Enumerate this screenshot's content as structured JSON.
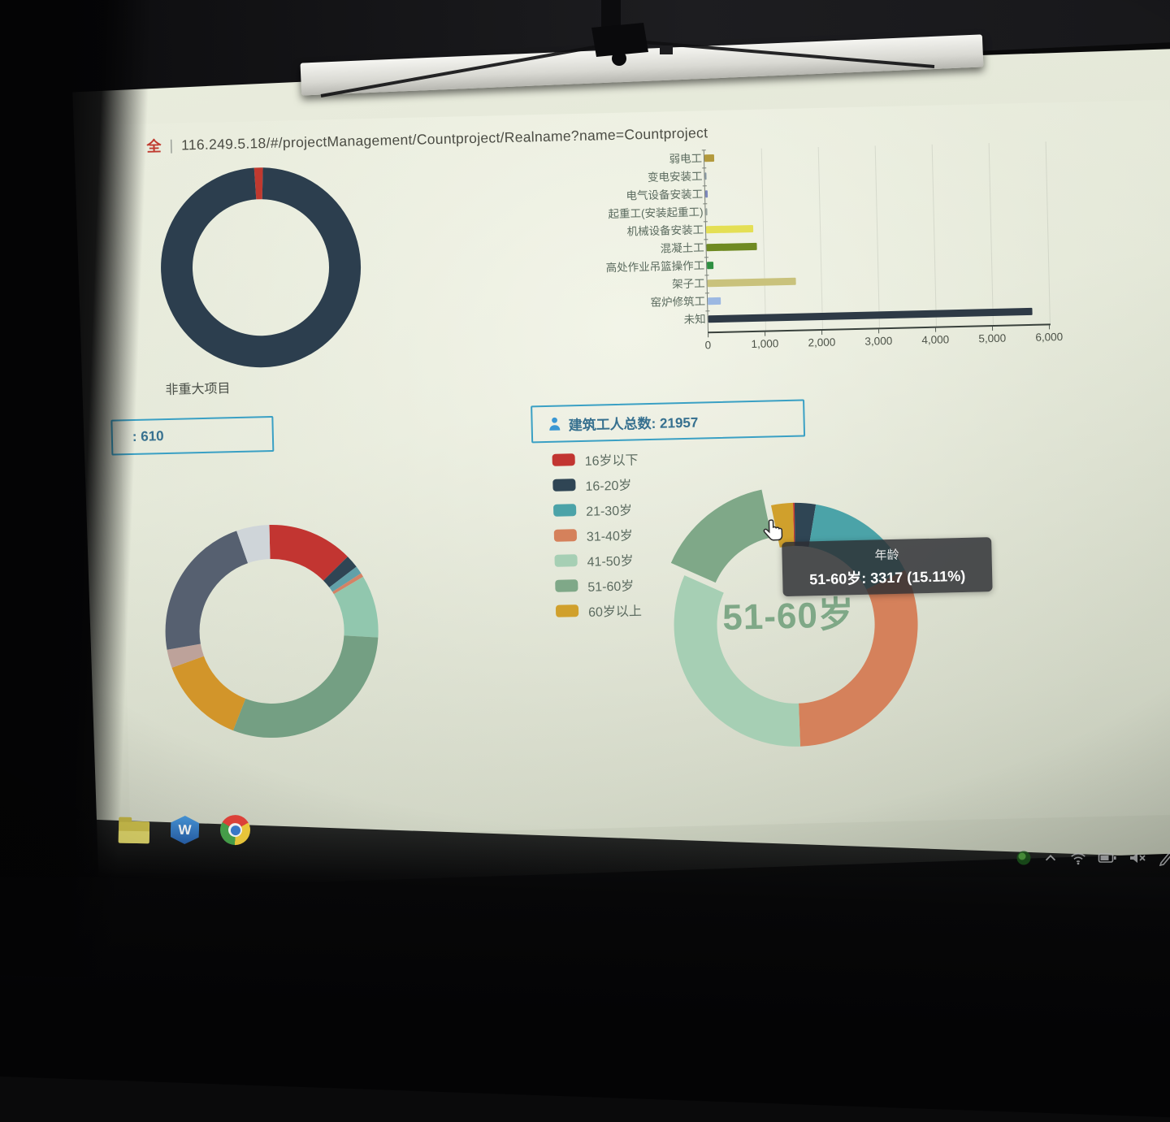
{
  "browser": {
    "security_label": "全",
    "separator": "|",
    "url": "116.249.5.18/#/projectManagement/Countproject/Realname?name=Countproject"
  },
  "left_panel": {
    "count_box_text": ": 610"
  },
  "workers_box": {
    "text": "建筑工人总数: 21957"
  },
  "chart_data": [
    {
      "id": "project-donut",
      "type": "pie",
      "caption": "非重大项目",
      "slices": [
        {
          "label": "",
          "pct": 1.4,
          "color": "#c0392f"
        },
        {
          "label": "非重大项目",
          "pct": 98.6,
          "color": "#2c3e4e"
        }
      ]
    },
    {
      "id": "worker-type-bar",
      "type": "bar",
      "orientation": "horizontal",
      "xlim": [
        0,
        6000
      ],
      "xticks": [
        "0",
        "1,000",
        "2,000",
        "3,000",
        "4,000",
        "5,000",
        "6,000"
      ],
      "categories": [
        "弱电工",
        "变电安装工",
        "电气设备安装工",
        "起重工(安装起重工)",
        "机械设备安装工",
        "混凝土工",
        "高处作业吊篮操作工",
        "架子工",
        "窑炉修筑工",
        "未知"
      ],
      "values": [
        170,
        25,
        45,
        12,
        830,
        880,
        120,
        1560,
        230,
        5700
      ],
      "bar_colors": [
        "#b39a3d",
        "#8a9aa5",
        "#7d88bb",
        "#9aa5a0",
        "#e4df54",
        "#6f8a22",
        "#2f8f41",
        "#c9c27c",
        "#9cb8e2",
        "#2e3a46"
      ]
    },
    {
      "id": "worker-dist-donut",
      "type": "pie",
      "slices": [
        {
          "label": "",
          "pct": 13.0,
          "color": "#c23531"
        },
        {
          "label": "",
          "pct": 2.0,
          "color": "#2f4554"
        },
        {
          "label": "",
          "pct": 1.2,
          "color": "#61a0a8"
        },
        {
          "label": "",
          "pct": 0.6,
          "color": "#d48265"
        },
        {
          "label": "",
          "pct": 9.5,
          "color": "#91c7ae"
        },
        {
          "label": "",
          "pct": 30.0,
          "color": "#749f83"
        },
        {
          "label": "",
          "pct": 13.5,
          "color": "#d2952a"
        },
        {
          "label": "",
          "pct": 2.8,
          "color": "#bda29a"
        },
        {
          "label": "",
          "pct": 22.4,
          "color": "#566070"
        },
        {
          "label": "",
          "pct": 5.0,
          "color": "#cfd5d9"
        }
      ]
    },
    {
      "id": "age-donut",
      "type": "pie",
      "total": 21957,
      "center_label": "51-60岁",
      "tooltip": {
        "title": "年龄",
        "value_line": "51-60岁: 3317 (15.11%)"
      },
      "legend": [
        {
          "label": "16岁以下",
          "color": "#c23531"
        },
        {
          "label": "16-20岁",
          "color": "#2f4554"
        },
        {
          "label": "21-30岁",
          "color": "#4ba3a8"
        },
        {
          "label": "31-40岁",
          "color": "#d5815b"
        },
        {
          "label": "41-50岁",
          "color": "#a6cfb4"
        },
        {
          "label": "51-60岁",
          "color": "#7fa888"
        },
        {
          "label": "60岁以上",
          "color": "#d0a02c"
        }
      ],
      "slices": [
        {
          "label": "16岁以下",
          "pct": 0.2,
          "color": "#c23531"
        },
        {
          "label": "16-20岁",
          "pct": 2.8,
          "color": "#2f4554"
        },
        {
          "label": "21-30岁",
          "pct": 15.0,
          "color": "#4ba3a8"
        },
        {
          "label": "31-40岁",
          "pct": 31.8,
          "color": "#d5815b"
        },
        {
          "label": "41-50岁",
          "pct": 32.2,
          "color": "#a6cfb4"
        },
        {
          "label": "51-60岁",
          "pct": 15.11,
          "value": 3317,
          "color": "#7fa888",
          "highlighted": true
        },
        {
          "label": "60岁以上",
          "pct": 2.89,
          "color": "#d0a02c"
        }
      ]
    }
  ],
  "taskbar": {
    "left_icons": [
      "folder",
      "wps",
      "chrome"
    ],
    "tray_icons": [
      "antivirus",
      "chevron-up",
      "wifi",
      "battery",
      "volume-muted",
      "pen"
    ]
  },
  "colors": {
    "accent_blue": "#3aa0c4",
    "echarts_palette": [
      "#c23531",
      "#2f4554",
      "#61a0a8",
      "#d48265",
      "#91c7ae",
      "#749f83",
      "#ca8622",
      "#bda29a",
      "#6e7074",
      "#546570",
      "#c4ccd3"
    ]
  }
}
